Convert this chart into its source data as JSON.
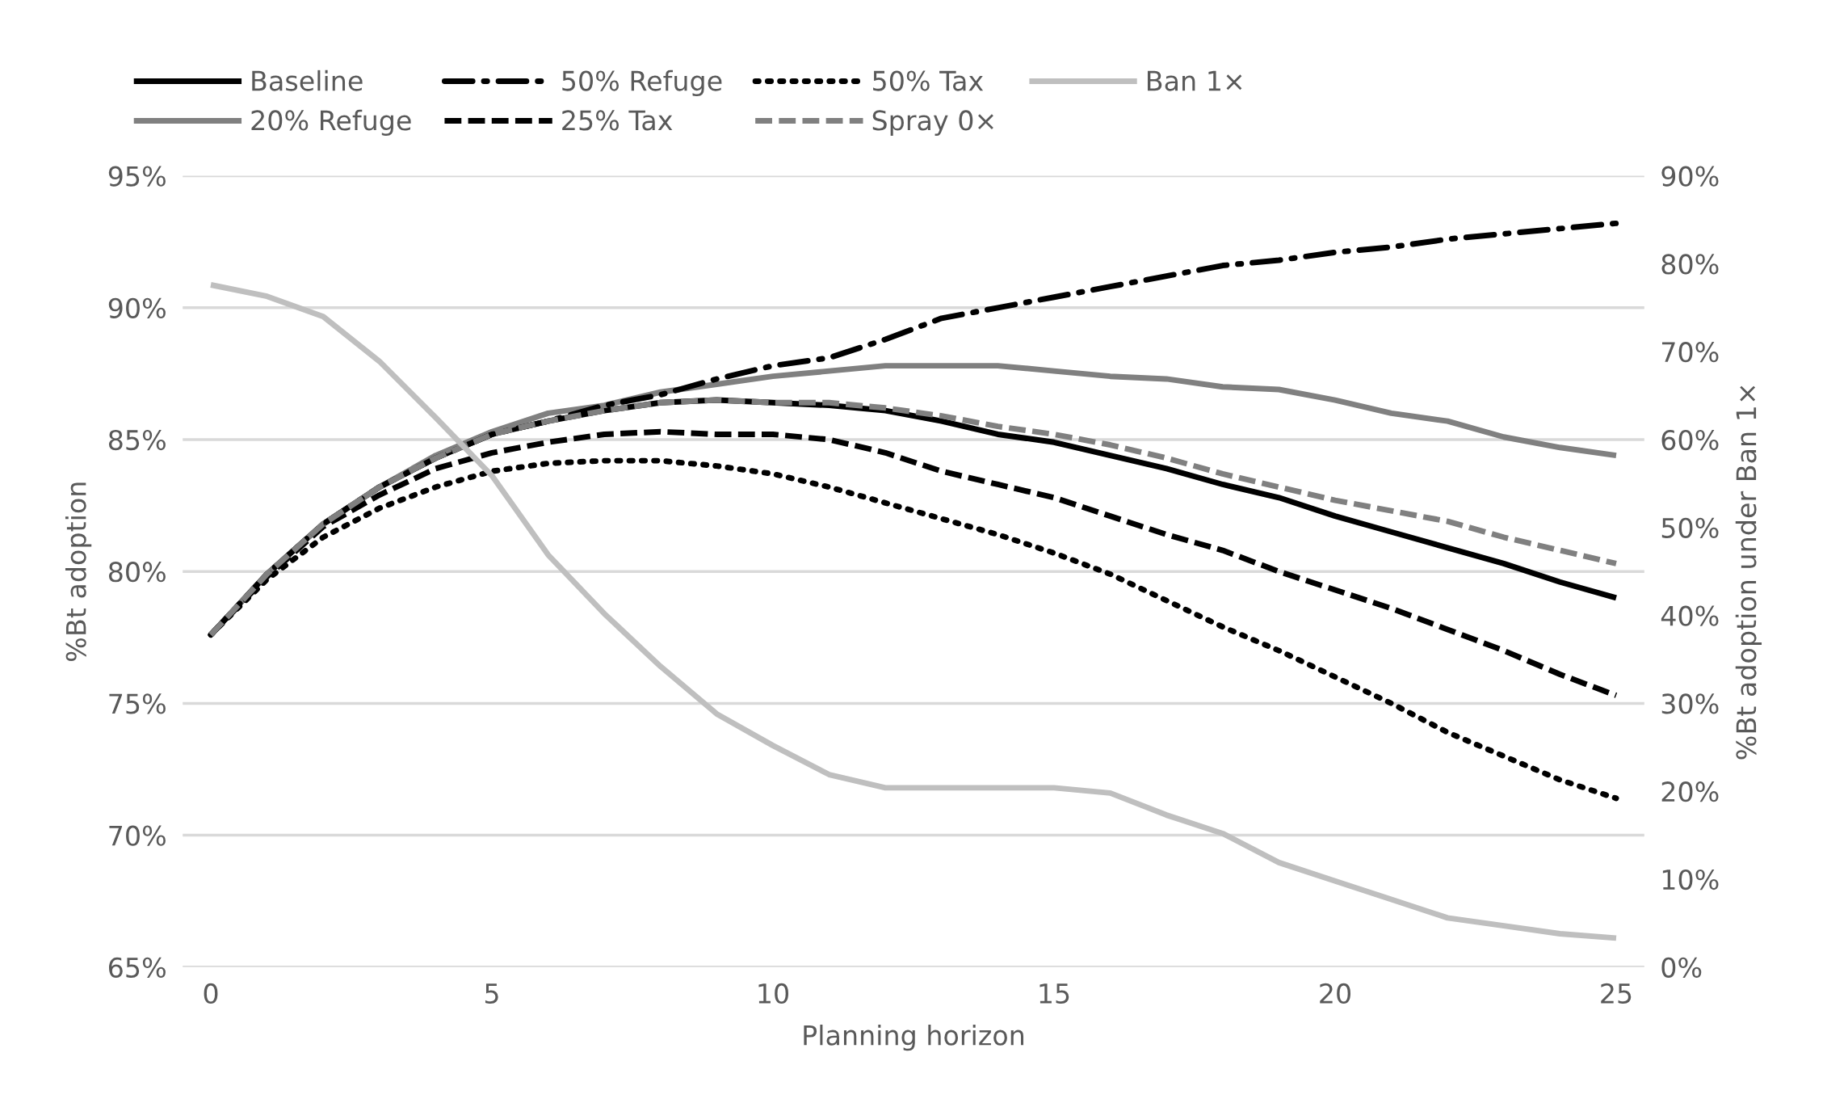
{
  "chart_data": {
    "type": "line",
    "xlabel": "Planning horizon",
    "ylabel": "%Bt adoption",
    "y2label": "%Bt adoption under Ban 1×",
    "x": [
      0,
      1,
      2,
      3,
      4,
      5,
      6,
      7,
      8,
      9,
      10,
      11,
      12,
      13,
      14,
      15,
      16,
      17,
      18,
      19,
      20,
      21,
      22,
      23,
      24,
      25
    ],
    "series": [
      {
        "name": "Baseline",
        "color": "#000000",
        "line_style": "solid",
        "values": [
          77.6,
          79.9,
          81.8,
          83.2,
          84.3,
          85.2,
          85.7,
          86.1,
          86.4,
          86.5,
          86.4,
          86.3,
          86.1,
          85.7,
          85.2,
          84.9,
          84.4,
          83.9,
          83.3,
          82.8,
          82.1,
          81.5,
          80.9,
          80.3,
          79.6,
          79.0
        ]
      },
      {
        "name": "20% Refuge",
        "color": "#808080",
        "line_style": "solid",
        "values": [
          77.6,
          79.9,
          81.8,
          83.2,
          84.4,
          85.3,
          86.0,
          86.3,
          86.8,
          87.1,
          87.4,
          87.6,
          87.8,
          87.8,
          87.8,
          87.6,
          87.4,
          87.3,
          87.0,
          86.9,
          86.5,
          86.0,
          85.7,
          85.1,
          84.7,
          84.4
        ]
      },
      {
        "name": "50% Refuge",
        "color": "#000000",
        "line_style": "dashdot",
        "values": [
          77.6,
          79.9,
          81.8,
          83.2,
          84.3,
          85.2,
          85.7,
          86.3,
          86.7,
          87.3,
          87.8,
          88.1,
          88.8,
          89.6,
          90.0,
          90.4,
          90.8,
          91.2,
          91.6,
          91.8,
          92.1,
          92.3,
          92.6,
          92.8,
          93.0,
          93.2
        ]
      },
      {
        "name": "25% Tax",
        "color": "#000000",
        "line_style": "dashed",
        "values": [
          77.6,
          79.8,
          81.7,
          82.9,
          83.9,
          84.5,
          84.9,
          85.2,
          85.3,
          85.2,
          85.2,
          85.0,
          84.5,
          83.8,
          83.3,
          82.8,
          82.1,
          81.4,
          80.8,
          80.0,
          79.3,
          78.6,
          77.8,
          77.0,
          76.1,
          75.3
        ]
      },
      {
        "name": "50% Tax",
        "color": "#000000",
        "line_style": "dotted",
        "values": [
          77.6,
          79.7,
          81.3,
          82.4,
          83.2,
          83.8,
          84.1,
          84.2,
          84.2,
          84.0,
          83.7,
          83.2,
          82.6,
          82.0,
          81.4,
          80.7,
          79.9,
          78.9,
          77.9,
          77.0,
          76.0,
          75.0,
          73.9,
          73.0,
          72.1,
          71.4
        ]
      },
      {
        "name": "Spray 0×",
        "color": "#808080",
        "line_style": "dashed",
        "values": [
          77.6,
          79.9,
          81.8,
          83.2,
          84.3,
          85.2,
          85.7,
          86.1,
          86.4,
          86.5,
          86.4,
          86.4,
          86.2,
          85.9,
          85.5,
          85.2,
          84.8,
          84.3,
          83.7,
          83.2,
          82.7,
          82.3,
          81.9,
          81.3,
          80.8,
          80.3
        ]
      },
      {
        "name": "Ban 1×",
        "color": "#bfbfbf",
        "line_style": "solid",
        "axis": "y2",
        "values": [
          77.6,
          76.3,
          74.0,
          68.9,
          62.5,
          55.9,
          46.9,
          40.2,
          34.2,
          28.8,
          25.2,
          21.9,
          20.4,
          20.4,
          20.4,
          20.4,
          19.8,
          17.3,
          15.2,
          11.9,
          9.8,
          7.7,
          5.6,
          4.7,
          3.8,
          3.3
        ]
      }
    ],
    "xlim": [
      -0.5,
      25.5
    ],
    "xticks": [
      0,
      5,
      10,
      15,
      20,
      25
    ],
    "ylim": [
      65,
      95
    ],
    "yticks": [
      {
        "value": 65,
        "label": "65%"
      },
      {
        "value": 70,
        "label": "70%"
      },
      {
        "value": 75,
        "label": "75%"
      },
      {
        "value": 80,
        "label": "80%"
      },
      {
        "value": 85,
        "label": "85%"
      },
      {
        "value": 90,
        "label": "90%"
      },
      {
        "value": 95,
        "label": "95%"
      }
    ],
    "y2lim": [
      0,
      90
    ],
    "y2ticks": [
      {
        "value": 0,
        "label": "0%"
      },
      {
        "value": 10,
        "label": "10%"
      },
      {
        "value": 20,
        "label": "20%"
      },
      {
        "value": 30,
        "label": "30%"
      },
      {
        "value": 40,
        "label": "40%"
      },
      {
        "value": 50,
        "label": "50%"
      },
      {
        "value": 60,
        "label": "60%"
      },
      {
        "value": 70,
        "label": "70%"
      },
      {
        "value": 80,
        "label": "80%"
      },
      {
        "value": 90,
        "label": "90%"
      }
    ],
    "grid": "y",
    "legend": "top",
    "marker": "none"
  }
}
